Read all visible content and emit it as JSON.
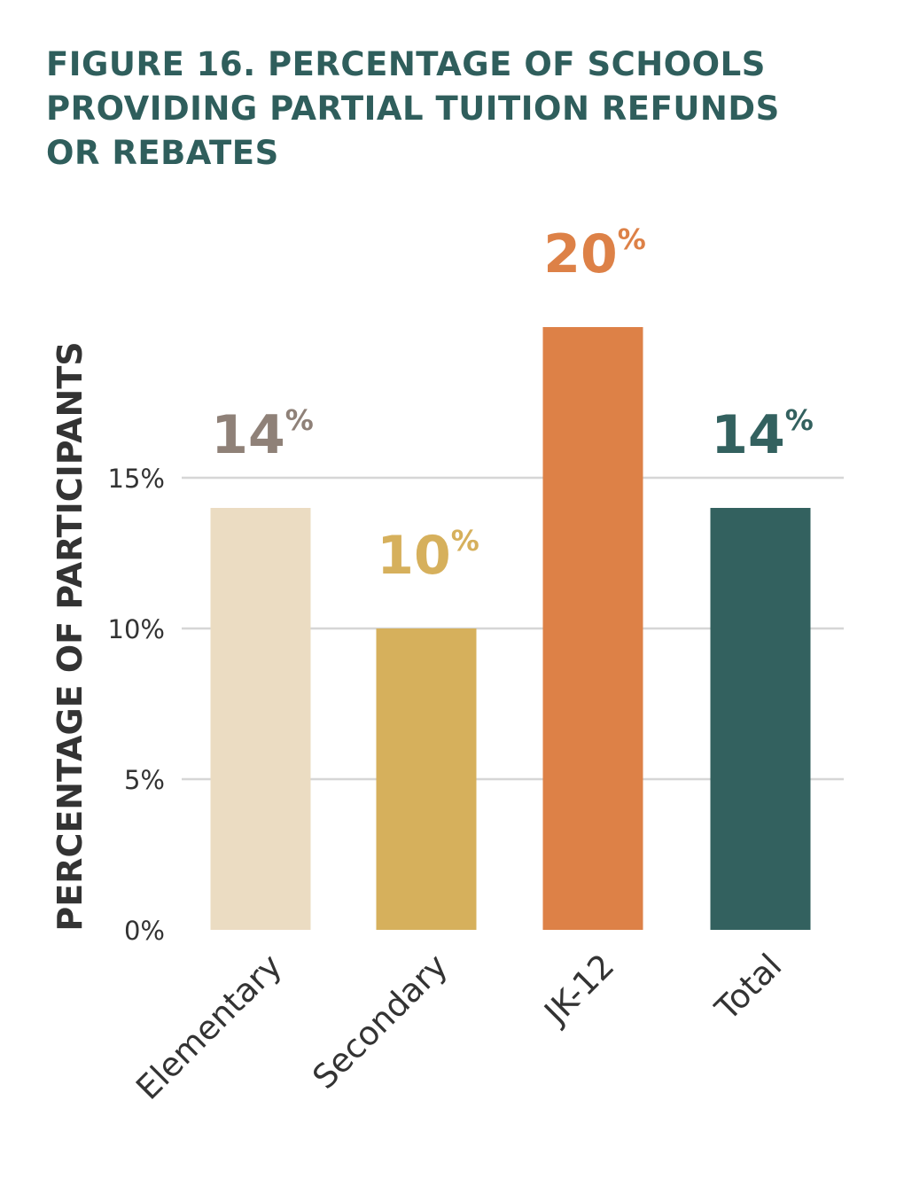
{
  "title_lines": [
    "FIGURE 16. PERCENTAGE OF SCHOOLS",
    "PROVIDING PARTIAL TUITION REFUNDS",
    "OR REBATES"
  ],
  "colors": {
    "title": "#2f5e5c",
    "gridline": "#d6d6d6",
    "axis_text": "#333333"
  },
  "chart_data": {
    "type": "bar",
    "title": "FIGURE 16. PERCENTAGE OF SCHOOLS PROVIDING PARTIAL TUITION REFUNDS OR REBATES",
    "ylabel": "PERCENTAGE OF PARTICIPANTS",
    "xlabel": "",
    "categories": [
      "Elementary",
      "Secondary",
      "JK-12",
      "Total"
    ],
    "values": [
      14,
      10,
      20,
      14
    ],
    "value_labels": [
      "14",
      "10",
      "20",
      "14"
    ],
    "value_suffix": "%",
    "ylim": [
      0,
      20
    ],
    "yticks": [
      0,
      5,
      10,
      15
    ],
    "ytick_labels": [
      "0%",
      "5%",
      "10%",
      "15%"
    ],
    "grid": true,
    "bar_colors": [
      "#ebdcc2",
      "#d6b05c",
      "#dd8147",
      "#33615f"
    ],
    "label_colors": [
      "#8f8178",
      "#d6b05c",
      "#dd8147",
      "#33615f"
    ]
  }
}
